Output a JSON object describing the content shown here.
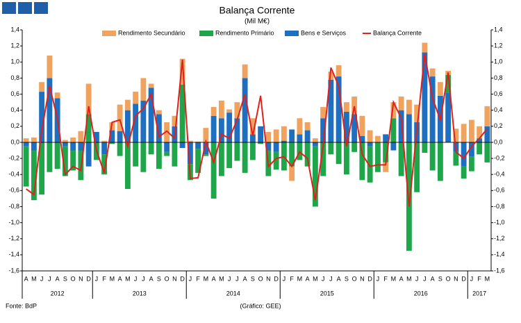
{
  "chart_data": {
    "type": "bar",
    "title": "Balança Corrente",
    "subtitle": "(Mil M€)",
    "source": "Fonte: BdP",
    "credit": "(Gráfico: GEE)",
    "categories": [
      "A",
      "M",
      "J",
      "J",
      "A",
      "S",
      "O",
      "N",
      "D",
      "J",
      "F",
      "M",
      "A",
      "M",
      "J",
      "J",
      "A",
      "S",
      "O",
      "N",
      "D",
      "J",
      "F",
      "M",
      "A",
      "M",
      "J",
      "J",
      "A",
      "S",
      "O",
      "N",
      "D",
      "J",
      "F",
      "M",
      "A",
      "M",
      "J",
      "J",
      "A",
      "S",
      "O",
      "N",
      "D",
      "J",
      "F",
      "M",
      "A",
      "M",
      "J",
      "J",
      "A",
      "S",
      "O",
      "N",
      "D",
      "J",
      "F",
      "M"
    ],
    "years": [
      "2012",
      "2013",
      "2014",
      "2015",
      "2016",
      "2017"
    ],
    "series": [
      {
        "name": "Rendimento Secundário",
        "type": "bar",
        "color": "#f0a35e",
        "values": [
          0.05,
          0.06,
          0.12,
          0.28,
          0.07,
          0.03,
          0.06,
          0.14,
          0.38,
          0.0,
          0.02,
          0.1,
          0.33,
          0.13,
          0.15,
          0.28,
          0.05,
          0.05,
          0.25,
          0.13,
          0.32,
          0.02,
          0.01,
          0.18,
          0.11,
          0.22,
          0.04,
          0.2,
          0.17,
          0.2,
          0.0,
          0.13,
          0.16,
          0.18,
          -0.18,
          0.2,
          0.1,
          0.05,
          0.14,
          0.1,
          0.14,
          0.12,
          0.22,
          0.25,
          0.15,
          0.08,
          -0.12,
          0.2,
          0.17,
          0.18,
          0.22,
          0.12,
          0.1,
          0.17,
          0.05,
          0.17,
          0.23,
          0.28,
          0.15,
          0.25
        ]
      },
      {
        "name": "Rendimento Primário",
        "type": "bar",
        "color": "#1fa64b",
        "values": [
          -0.5,
          -0.62,
          -0.65,
          -0.37,
          -0.33,
          -0.37,
          -0.25,
          -0.37,
          0.35,
          -0.22,
          -0.25,
          -0.02,
          -0.17,
          -0.58,
          -0.3,
          -0.37,
          -0.15,
          -0.33,
          -0.05,
          -0.3,
          0.72,
          -0.2,
          -0.3,
          -0.02,
          -0.7,
          -0.42,
          -0.32,
          -0.23,
          -0.38,
          -0.22,
          -0.02,
          -0.32,
          -0.22,
          -0.35,
          -0.3,
          -0.22,
          -0.3,
          -0.75,
          -0.42,
          -0.15,
          -0.27,
          -0.4,
          -0.12,
          -0.47,
          -0.45,
          -0.37,
          -0.25,
          0.3,
          -0.42,
          -1.35,
          -0.62,
          -0.13,
          -0.35,
          -0.48,
          0.22,
          -0.17,
          -0.15,
          -0.18,
          -0.15,
          -0.25
        ]
      },
      {
        "name": "Bens e Serviços",
        "type": "bar",
        "color": "#1f6fc1",
        "values": [
          -0.05,
          -0.1,
          0.63,
          0.8,
          0.55,
          -0.05,
          -0.1,
          -0.1,
          -0.3,
          0.13,
          -0.15,
          0.15,
          0.14,
          0.4,
          0.48,
          0.52,
          0.68,
          0.35,
          -0.12,
          0.2,
          -0.07,
          -0.27,
          -0.08,
          -0.15,
          0.33,
          0.3,
          0.37,
          0.3,
          0.8,
          0.1,
          0.2,
          -0.1,
          -0.12,
          0.02,
          0.16,
          0.1,
          0.15,
          -0.05,
          0.3,
          0.78,
          0.82,
          0.38,
          0.35,
          0.08,
          -0.05,
          0.0,
          0.1,
          -0.1,
          0.4,
          0.35,
          0.25,
          1.12,
          0.82,
          0.58,
          0.62,
          -0.12,
          -0.3,
          -0.18,
          0.05,
          0.2
        ]
      },
      {
        "name": "Balança Corrente",
        "type": "line",
        "color": "#e0201c",
        "values": [
          -0.58,
          -0.65,
          0.15,
          0.7,
          0.3,
          -0.4,
          -0.3,
          -0.35,
          0.45,
          -0.1,
          -0.38,
          0.25,
          0.28,
          -0.05,
          0.33,
          0.42,
          0.6,
          0.07,
          0.14,
          0.05,
          1.03,
          -0.45,
          -0.44,
          0.01,
          -0.25,
          0.1,
          0.05,
          0.28,
          0.6,
          0.08,
          0.58,
          -0.3,
          -0.2,
          -0.18,
          -0.3,
          -0.12,
          -0.2,
          -0.72,
          -0.05,
          0.93,
          0.7,
          -0.05,
          0.45,
          -0.15,
          -0.3,
          -0.28,
          -0.28,
          0.5,
          0.3,
          -0.8,
          0.15,
          1.1,
          0.55,
          0.28,
          0.87,
          -0.12,
          -0.2,
          -0.05,
          0.05,
          0.17
        ]
      }
    ],
    "ylim": [
      -1.6,
      1.4
    ],
    "yticks": [
      {
        "value": -1.6,
        "label": "-1,6"
      },
      {
        "value": -1.4,
        "label": "-1,4"
      },
      {
        "value": -1.2,
        "label": "-1,2"
      },
      {
        "value": -1,
        "label": "-1,0"
      },
      {
        "value": -0.8,
        "label": "-0,8"
      },
      {
        "value": -0.6,
        "label": "-0,6"
      },
      {
        "value": -0.4,
        "label": "-0,4"
      },
      {
        "value": -0.2,
        "label": "-0,2"
      },
      {
        "value": 0,
        "label": "0,0"
      },
      {
        "value": 0.2,
        "label": "0,2"
      },
      {
        "value": 0.4,
        "label": "0,4"
      },
      {
        "value": 0.6,
        "label": "0,6"
      },
      {
        "value": 0.8,
        "label": "0,8"
      },
      {
        "value": 1,
        "label": "1,0"
      },
      {
        "value": 1.2,
        "label": "1,2"
      },
      {
        "value": 1.4,
        "label": "1,4"
      }
    ]
  }
}
